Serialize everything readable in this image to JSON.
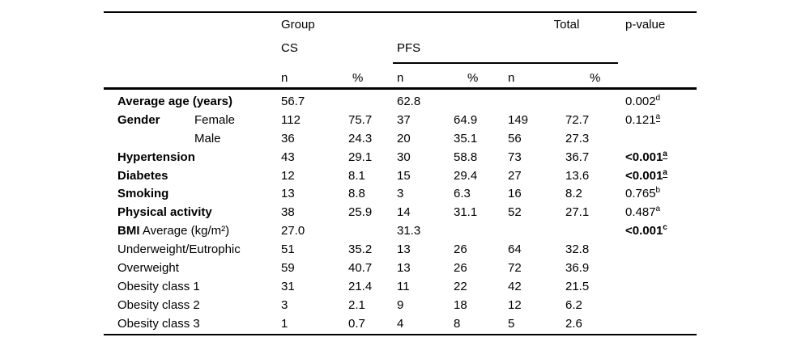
{
  "table": {
    "header": {
      "group_label": "Group",
      "total_label": "Total",
      "pvalue_label": "p-value",
      "cs_label": "CS",
      "pfs_label": "PFS",
      "n_label": "n",
      "pct_label": "%"
    },
    "rows": [
      {
        "main": "Average age (years)",
        "main_bold": true,
        "rest": "",
        "sub": "",
        "cs_n": "56.7",
        "cs_pct": "",
        "pfs_n": "62.8",
        "pfs_pct": "",
        "total_n": "",
        "total_pct": "",
        "p": "0.002",
        "p_sup": "d",
        "p_sup_underline": false,
        "p_bold": false
      },
      {
        "main": "Gender",
        "main_bold": true,
        "rest": "",
        "sub": "Female",
        "cs_n": "112",
        "cs_pct": "75.7",
        "pfs_n": "37",
        "pfs_pct": "64.9",
        "total_n": "149",
        "total_pct": "72.7",
        "p": "0.121",
        "p_sup": "a",
        "p_sup_underline": true,
        "p_bold": false
      },
      {
        "main": "",
        "main_bold": false,
        "rest": "",
        "sub": "Male",
        "cs_n": "36",
        "cs_pct": "24.3",
        "pfs_n": "20",
        "pfs_pct": "35.1",
        "total_n": "56",
        "total_pct": "27.3",
        "p": "",
        "p_sup": "",
        "p_sup_underline": false,
        "p_bold": false
      },
      {
        "main": "Hypertension",
        "main_bold": true,
        "rest": "",
        "sub": "",
        "cs_n": "43",
        "cs_pct": "29.1",
        "pfs_n": "30",
        "pfs_pct": "58.8",
        "total_n": "73",
        "total_pct": "36.7",
        "p": "<0.001",
        "p_sup": "a",
        "p_sup_underline": true,
        "p_bold": true
      },
      {
        "main": "Diabetes",
        "main_bold": true,
        "rest": "",
        "sub": "",
        "cs_n": "12",
        "cs_pct": "8.1",
        "pfs_n": "15",
        "pfs_pct": "29.4",
        "total_n": "27",
        "total_pct": "13.6",
        "p": "<0.001",
        "p_sup": "a",
        "p_sup_underline": true,
        "p_bold": true
      },
      {
        "main": "Smoking",
        "main_bold": true,
        "rest": "",
        "sub": "",
        "cs_n": "13",
        "cs_pct": "8.8",
        "pfs_n": "3",
        "pfs_pct": "6.3",
        "total_n": "16",
        "total_pct": "8.2",
        "p": "0.765",
        "p_sup": "b",
        "p_sup_underline": false,
        "p_bold": false
      },
      {
        "main": "Physical activity",
        "main_bold": true,
        "rest": "",
        "sub": "",
        "cs_n": "38",
        "cs_pct": "25.9",
        "pfs_n": "14",
        "pfs_pct": "31.1",
        "total_n": "52",
        "total_pct": "27.1",
        "p": "0.487",
        "p_sup": "a",
        "p_sup_underline": false,
        "p_bold": false
      },
      {
        "main": "BMI",
        "main_bold": true,
        "rest": " Average (kg/m²)",
        "sub": "",
        "cs_n": "27.0",
        "cs_pct": "",
        "pfs_n": "31.3",
        "pfs_pct": "",
        "total_n": "",
        "total_pct": "",
        "p": "<0.001",
        "p_sup": "c",
        "p_sup_underline": false,
        "p_bold": true
      },
      {
        "main": "Underweight/Eutrophic",
        "main_bold": false,
        "rest": "",
        "sub": "",
        "cs_n": "51",
        "cs_pct": "35.2",
        "pfs_n": "13",
        "pfs_pct": "26",
        "total_n": "64",
        "total_pct": "32.8",
        "p": "",
        "p_sup": "",
        "p_sup_underline": false,
        "p_bold": false
      },
      {
        "main": "Overweight",
        "main_bold": false,
        "rest": "",
        "sub": "",
        "cs_n": "59",
        "cs_pct": "40.7",
        "pfs_n": "13",
        "pfs_pct": "26",
        "total_n": "72",
        "total_pct": "36.9",
        "p": "",
        "p_sup": "",
        "p_sup_underline": false,
        "p_bold": false
      },
      {
        "main": "Obesity class 1",
        "main_bold": false,
        "rest": "",
        "sub": "",
        "cs_n": "31",
        "cs_pct": "21.4",
        "pfs_n": "11",
        "pfs_pct": "22",
        "total_n": "42",
        "total_pct": "21.5",
        "p": "",
        "p_sup": "",
        "p_sup_underline": false,
        "p_bold": false
      },
      {
        "main": "Obesity class 2",
        "main_bold": false,
        "rest": "",
        "sub": "",
        "cs_n": "3",
        "cs_pct": "2.1",
        "pfs_n": "9",
        "pfs_pct": "18",
        "total_n": "12",
        "total_pct": "6.2",
        "p": "",
        "p_sup": "",
        "p_sup_underline": false,
        "p_bold": false
      },
      {
        "main": "Obesity class 3",
        "main_bold": false,
        "rest": "",
        "sub": "",
        "cs_n": "1",
        "cs_pct": "0.7",
        "pfs_n": "4",
        "pfs_pct": "8",
        "total_n": "5",
        "total_pct": "2.6",
        "p": "",
        "p_sup": "",
        "p_sup_underline": false,
        "p_bold": false
      }
    ]
  }
}
